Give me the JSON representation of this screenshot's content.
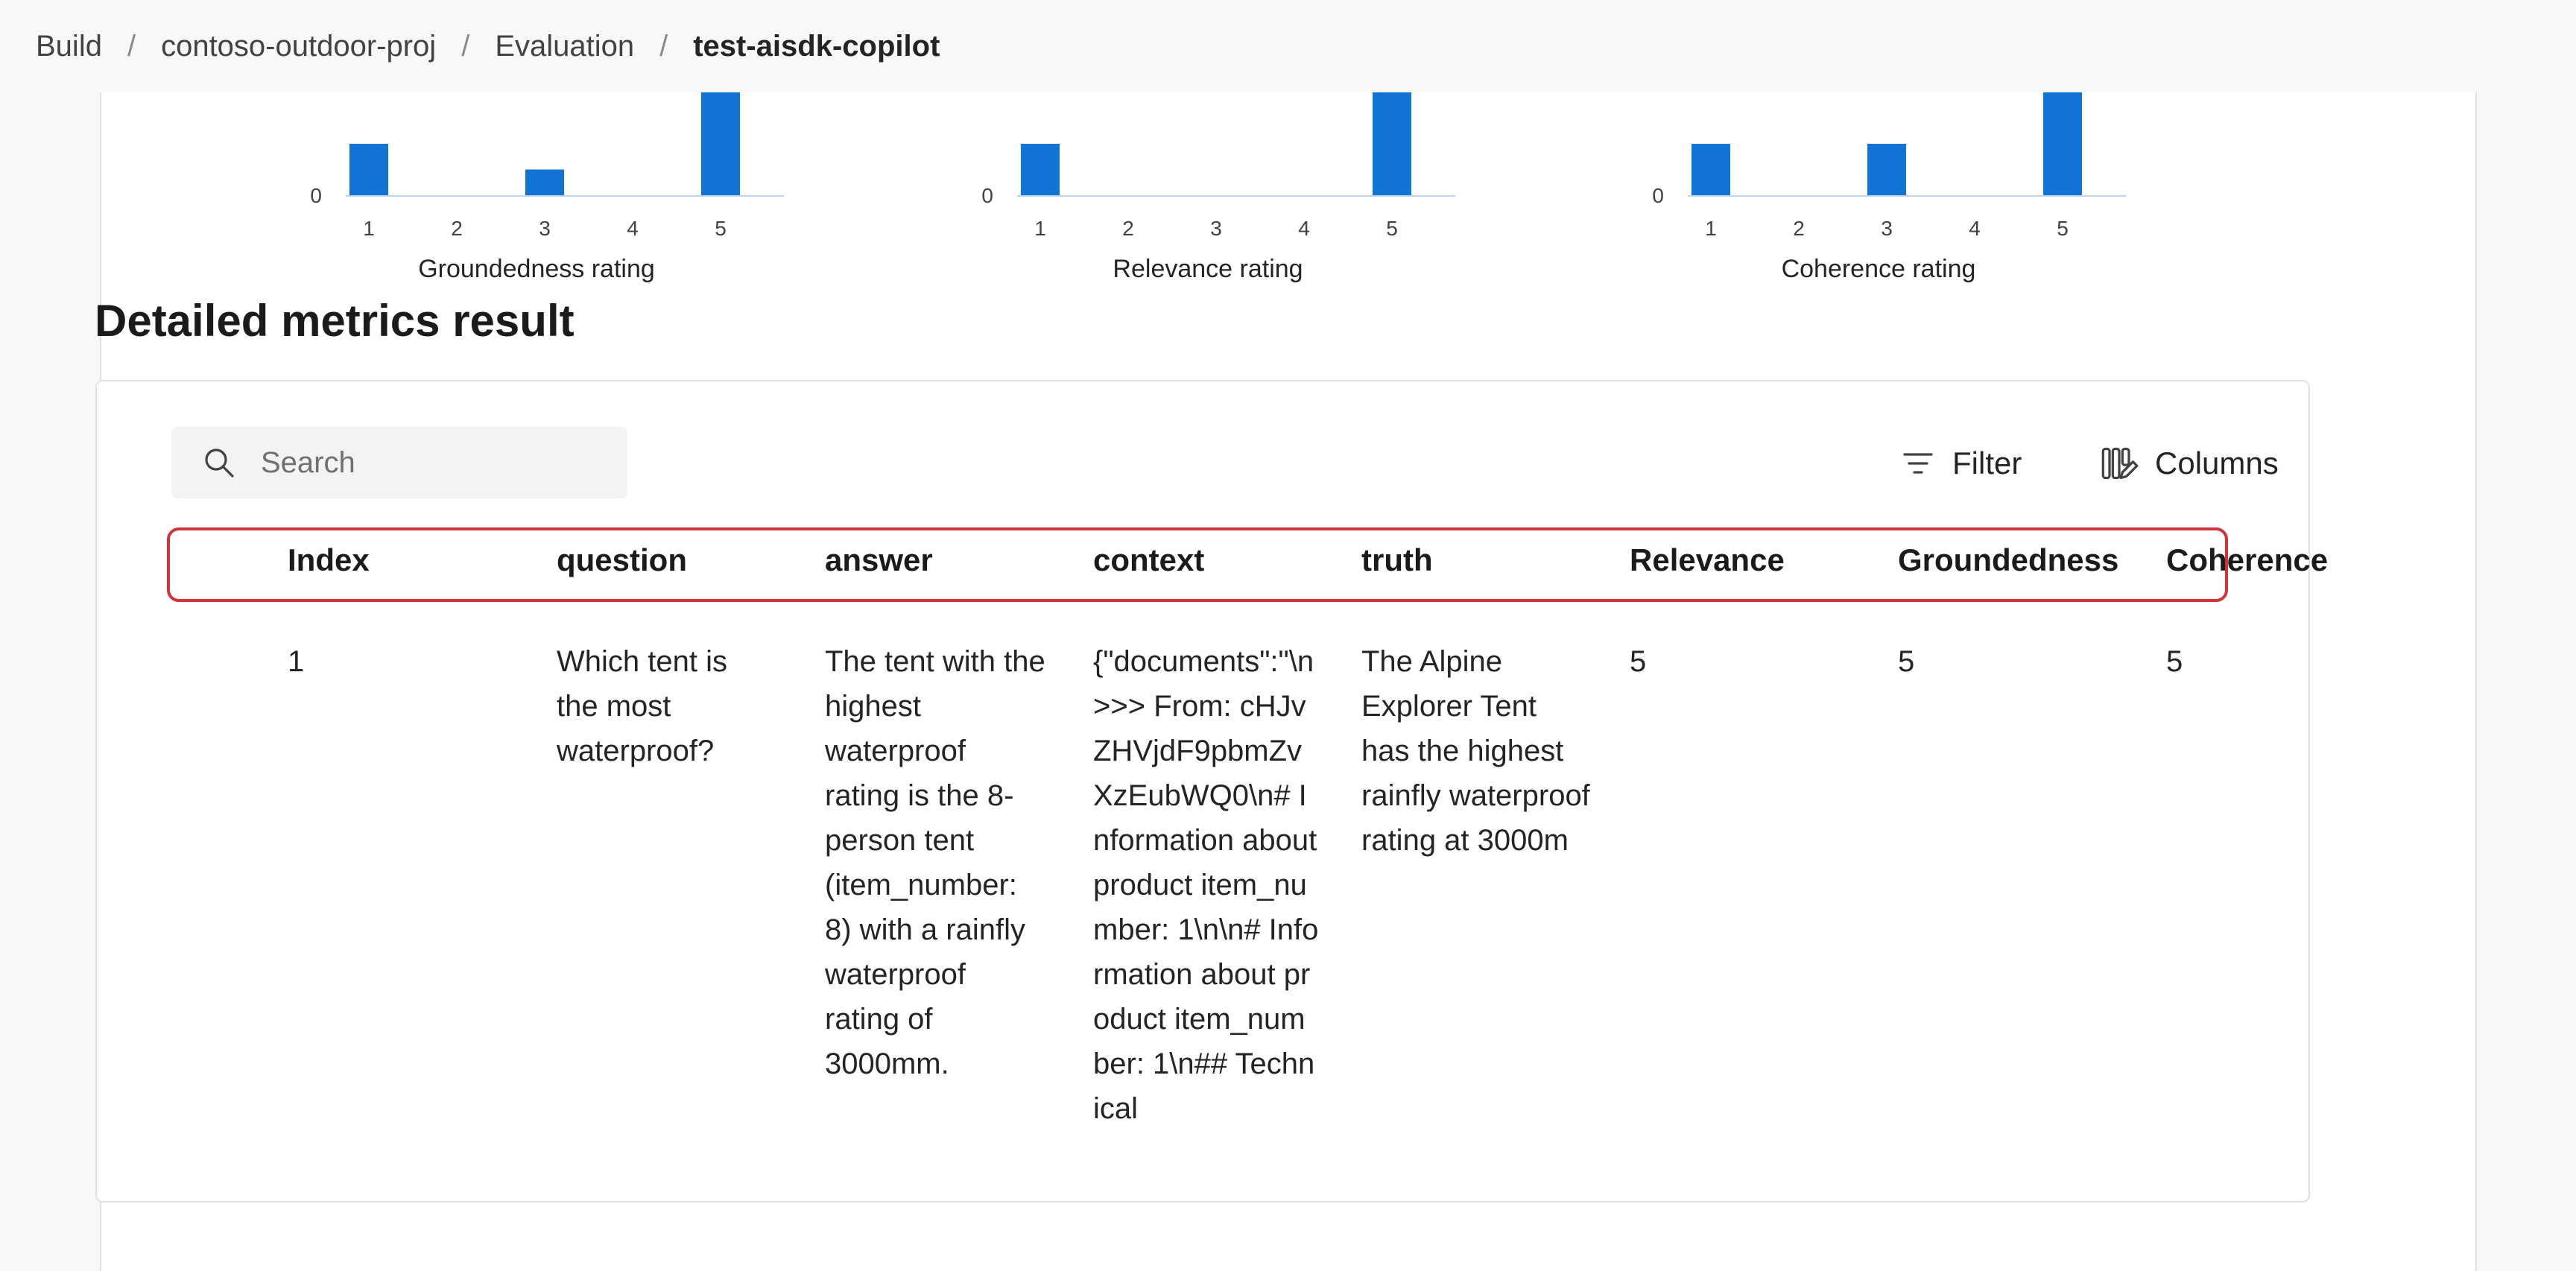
{
  "breadcrumb": [
    "Build",
    "contoso-outdoor-proj",
    "Evaluation",
    "test-aisdk-copilot"
  ],
  "charts": [
    {
      "xlabel": "Groundedness rating",
      "zero_tick": "0",
      "categories": [
        "1",
        "2",
        "3",
        "4",
        "5"
      ]
    },
    {
      "xlabel": "Relevance rating",
      "zero_tick": "0",
      "categories": [
        "1",
        "2",
        "3",
        "4",
        "5"
      ]
    },
    {
      "xlabel": "Coherence rating",
      "zero_tick": "0",
      "categories": [
        "1",
        "2",
        "3",
        "4",
        "5"
      ]
    }
  ],
  "chart_data": [
    {
      "type": "bar",
      "categories": [
        "1",
        "2",
        "3",
        "4",
        "5"
      ],
      "values": [
        1,
        0,
        0.5,
        0,
        2
      ],
      "xlabel": "Groundedness rating",
      "bar_color": "#1174d4"
    },
    {
      "type": "bar",
      "categories": [
        "1",
        "2",
        "3",
        "4",
        "5"
      ],
      "values": [
        1,
        0,
        0,
        0,
        2
      ],
      "xlabel": "Relevance rating",
      "bar_color": "#1174d4"
    },
    {
      "type": "bar",
      "categories": [
        "1",
        "2",
        "3",
        "4",
        "5"
      ],
      "values": [
        1,
        0,
        1,
        0,
        2
      ],
      "xlabel": "Coherence rating",
      "bar_color": "#1174d4"
    }
  ],
  "section_title": "Detailed metrics result",
  "search": {
    "placeholder": "Search"
  },
  "toolbar": {
    "filter_label": "Filter",
    "columns_label": "Columns"
  },
  "table": {
    "columns": [
      "Index",
      "question",
      "answer",
      "context",
      "truth",
      "Relevance",
      "Groundedness",
      "Coherence"
    ],
    "rows": [
      {
        "index": "1",
        "question": "Which tent is the most waterproof?",
        "answer": "The tent with the highest waterproof rating is the 8-person tent (item_number: 8) with a rainfly waterproof rating of 3000mm.",
        "context": "{\"documents\":\"\\n>>> From: cHJvZHVjdF9pbmZvXzEubWQ0\\n# Information about product item_number: 1\\n\\n# Information about product item_number: 1\\n## Technical",
        "truth": "The Alpine Explorer Tent has the highest rainfly waterproof rating at 3000m",
        "relevance": "5",
        "groundedness": "5",
        "coherence": "5"
      }
    ]
  }
}
